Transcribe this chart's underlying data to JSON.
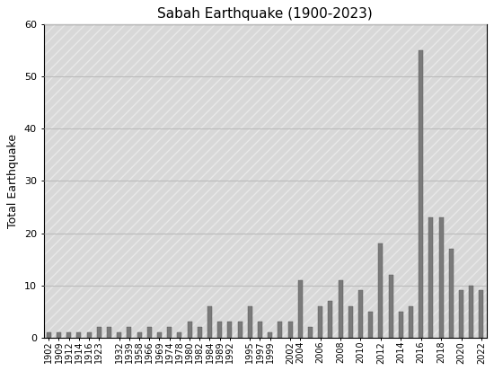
{
  "title": "Sabah Earthquake (1900-2023)",
  "ylabel": "Total Earthquake",
  "bar_color": "#7a7a7a",
  "bar_edgecolor": "#555555",
  "bg_facecolor": "#d8d8d8",
  "bg_hatch_color": "#c0c0c0",
  "grid_color": "#bbbbbb",
  "ylim": [
    0,
    60
  ],
  "yticks": [
    0,
    10,
    20,
    30,
    40,
    50,
    60
  ],
  "years_values": {
    "1902": 1,
    "1909": 1,
    "1912": 1,
    "1914": 1,
    "1916": 1,
    "1923": 2,
    "1925": 2,
    "1932": 1,
    "1939": 2,
    "1958": 1,
    "1966": 2,
    "1969": 1,
    "1974": 2,
    "1978": 1,
    "1980": 3,
    "1982": 2,
    "1984": 6,
    "1989": 3,
    "1992": 3,
    "1993": 3,
    "1995": 6,
    "1997": 3,
    "1999": 1,
    "2000": 3,
    "2002": 3,
    "2004": 11,
    "2005": 2,
    "2006": 6,
    "2007": 7,
    "2008": 11,
    "2009": 6,
    "2010": 9,
    "2011": 5,
    "2012": 18,
    "2013": 12,
    "2014": 5,
    "2015": 6,
    "2016": 55,
    "2017": 23,
    "2018": 23,
    "2019": 17,
    "2020": 9,
    "2021": 10,
    "2022": 9
  },
  "xtick_labels": [
    "1902",
    "1909",
    "1912",
    "1914",
    "1916",
    "1923",
    "1932",
    "1939",
    "1958",
    "1966",
    "1969",
    "1974",
    "1978",
    "1980",
    "1982",
    "1984",
    "1989",
    "1992",
    "1995",
    "1997",
    "1999",
    "2002",
    "2004",
    "2006",
    "2008",
    "2010",
    "2012",
    "2014",
    "2016",
    "2018",
    "2020",
    "2022"
  ],
  "title_fontsize": 11,
  "ylabel_fontsize": 9,
  "tick_fontsize": 7
}
